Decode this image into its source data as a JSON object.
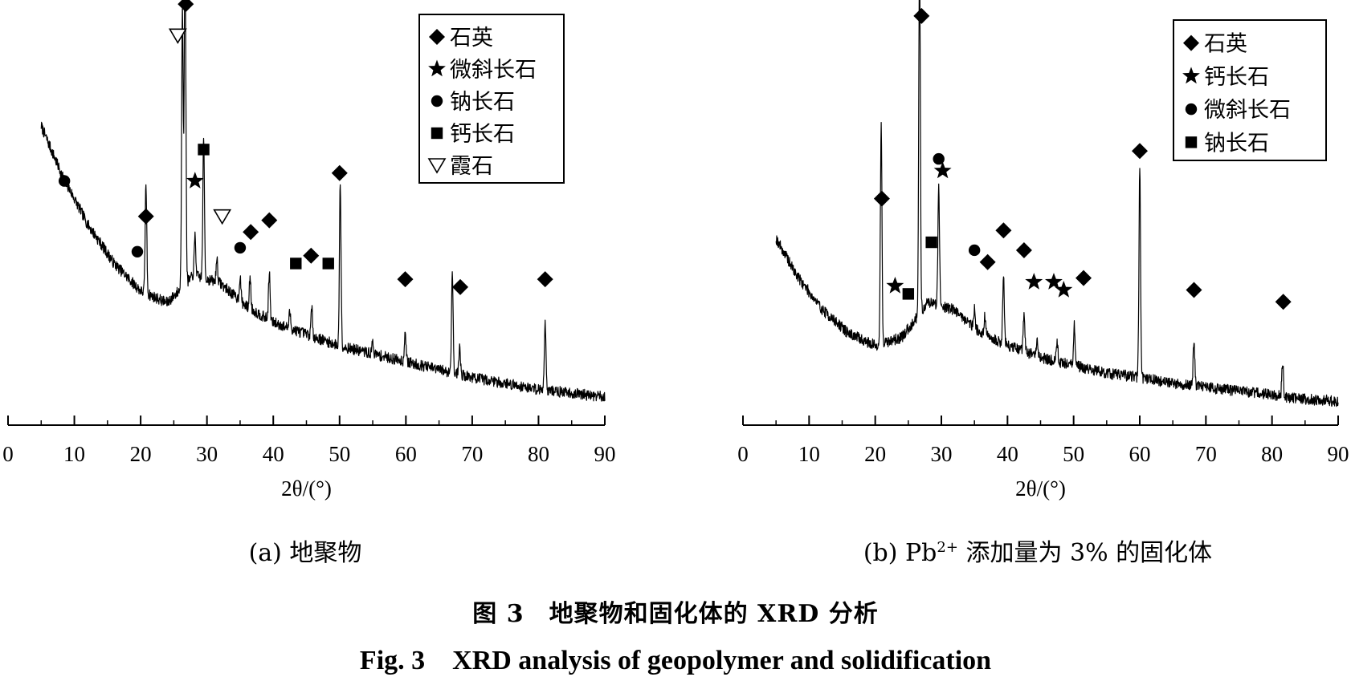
{
  "figure": {
    "title_cn": "图 3　地聚物和固化体的 XRD 分析",
    "title_en": "Fig. 3　XRD analysis of geopolymer and solidification"
  },
  "chart_data": [
    {
      "id": "a",
      "type": "line",
      "caption": "(a) 地聚物",
      "xlabel": "2θ/(°)",
      "ylabel": "",
      "xlim": [
        0,
        90
      ],
      "xticks": [
        0,
        10,
        20,
        30,
        40,
        50,
        60,
        70,
        80,
        90
      ],
      "y_axis_shown": false,
      "grid": false,
      "legend_position": "top-right",
      "legend": [
        {
          "marker": "diamond",
          "label": "石英"
        },
        {
          "marker": "star",
          "label": "微斜长石"
        },
        {
          "marker": "circle",
          "label": "钠长石"
        },
        {
          "marker": "square",
          "label": "钙长石"
        },
        {
          "marker": "triangle-down-open",
          "label": "霞石"
        }
      ],
      "background": [
        [
          5,
          0.7
        ],
        [
          8,
          0.58
        ],
        [
          12,
          0.45
        ],
        [
          16,
          0.35
        ],
        [
          20,
          0.28
        ],
        [
          24,
          0.25
        ],
        [
          28,
          0.32
        ],
        [
          32,
          0.3
        ],
        [
          36,
          0.24
        ],
        [
          40,
          0.2
        ],
        [
          45,
          0.17
        ],
        [
          50,
          0.14
        ],
        [
          55,
          0.12
        ],
        [
          60,
          0.1
        ],
        [
          65,
          0.08
        ],
        [
          70,
          0.06
        ],
        [
          75,
          0.045
        ],
        [
          80,
          0.03
        ],
        [
          85,
          0.02
        ],
        [
          90,
          0.01
        ]
      ],
      "peaks": [
        {
          "x": 20.8,
          "h": 0.28
        },
        {
          "x": 26.3,
          "h": 0.72
        },
        {
          "x": 26.7,
          "h": 0.88
        },
        {
          "x": 28.2,
          "h": 0.1
        },
        {
          "x": 29.5,
          "h": 0.35
        },
        {
          "x": 31.5,
          "h": 0.06
        },
        {
          "x": 35.0,
          "h": 0.06
        },
        {
          "x": 36.5,
          "h": 0.08
        },
        {
          "x": 39.4,
          "h": 0.12
        },
        {
          "x": 42.5,
          "h": 0.04
        },
        {
          "x": 45.8,
          "h": 0.07
        },
        {
          "x": 50.1,
          "h": 0.42
        },
        {
          "x": 55.0,
          "h": 0.03
        },
        {
          "x": 59.9,
          "h": 0.08
        },
        {
          "x": 67.0,
          "h": 0.26
        },
        {
          "x": 68.1,
          "h": 0.07
        },
        {
          "x": 81.0,
          "h": 0.18
        }
      ],
      "markers": [
        {
          "x": 26.8,
          "y": 1.01,
          "marker": "diamond"
        },
        {
          "x": 25.6,
          "y": 0.93,
          "marker": "triangle-down-open"
        },
        {
          "x": 29.5,
          "y": 0.64,
          "marker": "square"
        },
        {
          "x": 8.5,
          "y": 0.56,
          "marker": "circle"
        },
        {
          "x": 28.2,
          "y": 0.56,
          "marker": "star"
        },
        {
          "x": 20.8,
          "y": 0.47,
          "marker": "diamond"
        },
        {
          "x": 32.3,
          "y": 0.47,
          "marker": "triangle-down-open"
        },
        {
          "x": 39.4,
          "y": 0.46,
          "marker": "diamond"
        },
        {
          "x": 36.6,
          "y": 0.43,
          "marker": "diamond"
        },
        {
          "x": 35.0,
          "y": 0.39,
          "marker": "circle"
        },
        {
          "x": 19.5,
          "y": 0.38,
          "marker": "circle"
        },
        {
          "x": 45.7,
          "y": 0.37,
          "marker": "diamond"
        },
        {
          "x": 50.0,
          "y": 0.58,
          "marker": "diamond"
        },
        {
          "x": 43.4,
          "y": 0.35,
          "marker": "square"
        },
        {
          "x": 48.3,
          "y": 0.35,
          "marker": "square"
        },
        {
          "x": 59.9,
          "y": 0.31,
          "marker": "diamond"
        },
        {
          "x": 68.2,
          "y": 0.29,
          "marker": "diamond"
        },
        {
          "x": 81.0,
          "y": 0.31,
          "marker": "diamond"
        }
      ]
    },
    {
      "id": "b",
      "type": "line",
      "caption_prefix": "(b) Pb",
      "caption_sup": "2+",
      "caption_suffix": " 添加量为 3% 的固化体",
      "xlabel": "2θ/(°)",
      "ylabel": "",
      "xlim": [
        0,
        90
      ],
      "xticks": [
        0,
        10,
        20,
        30,
        40,
        50,
        60,
        70,
        80,
        90
      ],
      "y_axis_shown": false,
      "grid": false,
      "legend_position": "top-right",
      "legend": [
        {
          "marker": "diamond",
          "label": "石英"
        },
        {
          "marker": "star",
          "label": "钙长石"
        },
        {
          "marker": "circle",
          "label": "微斜长石"
        },
        {
          "marker": "square",
          "label": "钠长石"
        }
      ],
      "background": [
        [
          5,
          0.42
        ],
        [
          8,
          0.33
        ],
        [
          12,
          0.24
        ],
        [
          16,
          0.18
        ],
        [
          20,
          0.15
        ],
        [
          24,
          0.17
        ],
        [
          28,
          0.26
        ],
        [
          32,
          0.24
        ],
        [
          36,
          0.18
        ],
        [
          40,
          0.15
        ],
        [
          45,
          0.12
        ],
        [
          50,
          0.1
        ],
        [
          55,
          0.08
        ],
        [
          60,
          0.07
        ],
        [
          65,
          0.055
        ],
        [
          70,
          0.045
        ],
        [
          75,
          0.035
        ],
        [
          80,
          0.025
        ],
        [
          85,
          0.015
        ],
        [
          90,
          0.01
        ]
      ],
      "peaks": [
        {
          "x": 20.9,
          "h": 0.55
        },
        {
          "x": 26.7,
          "h": 0.9
        },
        {
          "x": 29.6,
          "h": 0.3
        },
        {
          "x": 35.0,
          "h": 0.05
        },
        {
          "x": 36.6,
          "h": 0.05
        },
        {
          "x": 39.4,
          "h": 0.18
        },
        {
          "x": 42.5,
          "h": 0.1
        },
        {
          "x": 44.5,
          "h": 0.04
        },
        {
          "x": 47.5,
          "h": 0.05
        },
        {
          "x": 50.1,
          "h": 0.1
        },
        {
          "x": 60.0,
          "h": 0.53
        },
        {
          "x": 68.2,
          "h": 0.12
        },
        {
          "x": 81.6,
          "h": 0.09
        }
      ],
      "markers": [
        {
          "x": 27.0,
          "y": 0.98,
          "marker": "diamond"
        },
        {
          "x": 29.6,
          "y": 0.62,
          "marker": "circle"
        },
        {
          "x": 30.2,
          "y": 0.59,
          "marker": "star"
        },
        {
          "x": 60.0,
          "y": 0.64,
          "marker": "diamond"
        },
        {
          "x": 21.0,
          "y": 0.52,
          "marker": "diamond"
        },
        {
          "x": 39.4,
          "y": 0.44,
          "marker": "diamond"
        },
        {
          "x": 28.5,
          "y": 0.41,
          "marker": "square"
        },
        {
          "x": 35.0,
          "y": 0.39,
          "marker": "circle"
        },
        {
          "x": 42.5,
          "y": 0.39,
          "marker": "diamond"
        },
        {
          "x": 37.0,
          "y": 0.36,
          "marker": "diamond"
        },
        {
          "x": 23.0,
          "y": 0.3,
          "marker": "star"
        },
        {
          "x": 25.0,
          "y": 0.28,
          "marker": "square"
        },
        {
          "x": 44.0,
          "y": 0.31,
          "marker": "star"
        },
        {
          "x": 47.0,
          "y": 0.31,
          "marker": "star"
        },
        {
          "x": 48.5,
          "y": 0.29,
          "marker": "star"
        },
        {
          "x": 51.5,
          "y": 0.32,
          "marker": "diamond"
        },
        {
          "x": 68.2,
          "y": 0.29,
          "marker": "diamond"
        },
        {
          "x": 81.7,
          "y": 0.26,
          "marker": "diamond"
        }
      ]
    }
  ]
}
